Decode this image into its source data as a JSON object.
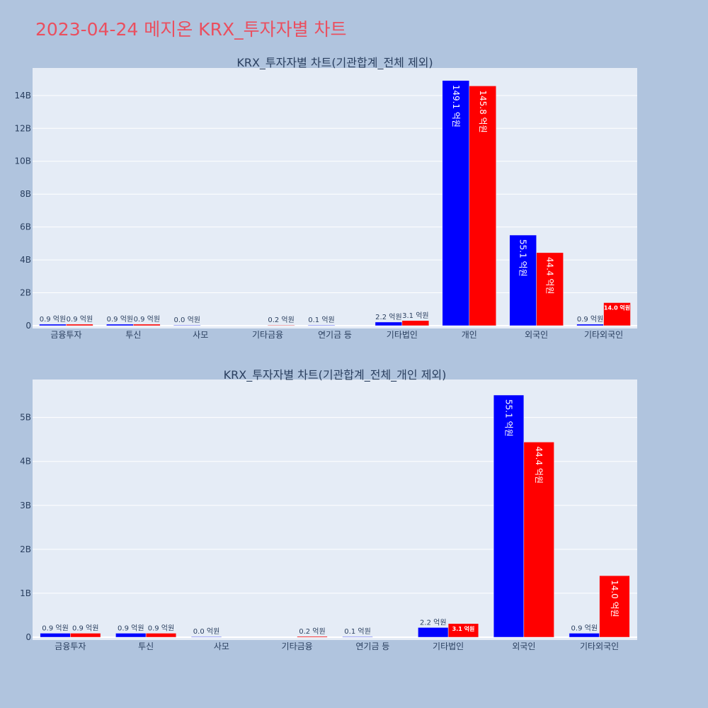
{
  "page": {
    "title": "2023-04-24 메지온 KRX_투자자별 차트"
  },
  "colors": {
    "series_a": "#0000ff",
    "series_b": "#ff0000",
    "plot_bg": "#e5ecf6",
    "page_bg": "#b0c4de",
    "title": "#ea4f5f"
  },
  "chart_data": [
    {
      "type": "bar",
      "title": "KRX_투자자별 차트(기관합계_전체 제외)",
      "categories": [
        "금융투자",
        "투신",
        "사모",
        "기타금융",
        "연기금 등",
        "기타법인",
        "개인",
        "외국인",
        "기타외국인"
      ],
      "series": [
        {
          "values": [
            0.09,
            0.09,
            0.0,
            null,
            0.01,
            0.22,
            14.91,
            5.51,
            0.09
          ],
          "labels": [
            "0.9 억원",
            "0.9 억원",
            "0.0 억원",
            "",
            "0.1 억원",
            "2.2 억원",
            "149.1 억원",
            "55.1 억원",
            "0.9 억원"
          ]
        },
        {
          "values": [
            0.09,
            0.09,
            null,
            0.02,
            null,
            0.31,
            14.58,
            4.44,
            1.4
          ],
          "labels": [
            "0.9 억원",
            "0.9 억원",
            "",
            "0.2 억원",
            "",
            "3.1 억원",
            "145.8 억원",
            "44.4 억원",
            "14.0 억원"
          ]
        }
      ],
      "ylim": [
        0,
        15.5
      ],
      "yticks": [
        0,
        2,
        4,
        6,
        8,
        10,
        12,
        14
      ],
      "ytick_labels": [
        "0",
        "2B",
        "4B",
        "6B",
        "8B",
        "10B",
        "12B",
        "14B"
      ]
    },
    {
      "type": "bar",
      "title": "KRX_투자자별 차트(기관합계_전체_개인 제외)",
      "categories": [
        "금융투자",
        "투신",
        "사모",
        "기타금융",
        "연기금 등",
        "기타법인",
        "외국인",
        "기타외국인"
      ],
      "series": [
        {
          "values": [
            0.09,
            0.09,
            0.0,
            null,
            0.01,
            0.22,
            5.51,
            0.09
          ],
          "labels": [
            "0.9 억원",
            "0.9 억원",
            "0.0 억원",
            "",
            "0.1 억원",
            "2.2 억원",
            "55.1 억원",
            "0.9 억원"
          ]
        },
        {
          "values": [
            0.09,
            0.09,
            null,
            0.02,
            null,
            0.31,
            4.44,
            1.4
          ],
          "labels": [
            "0.9 억원",
            "0.9 억원",
            "",
            "0.2 억원",
            "",
            "3.1 억원",
            "44.4 억원",
            "14.0 억원"
          ]
        }
      ],
      "ylim": [
        0,
        5.8
      ],
      "yticks": [
        0,
        1,
        2,
        3,
        4,
        5
      ],
      "ytick_labels": [
        "0",
        "1B",
        "2B",
        "3B",
        "4B",
        "5B"
      ]
    }
  ]
}
